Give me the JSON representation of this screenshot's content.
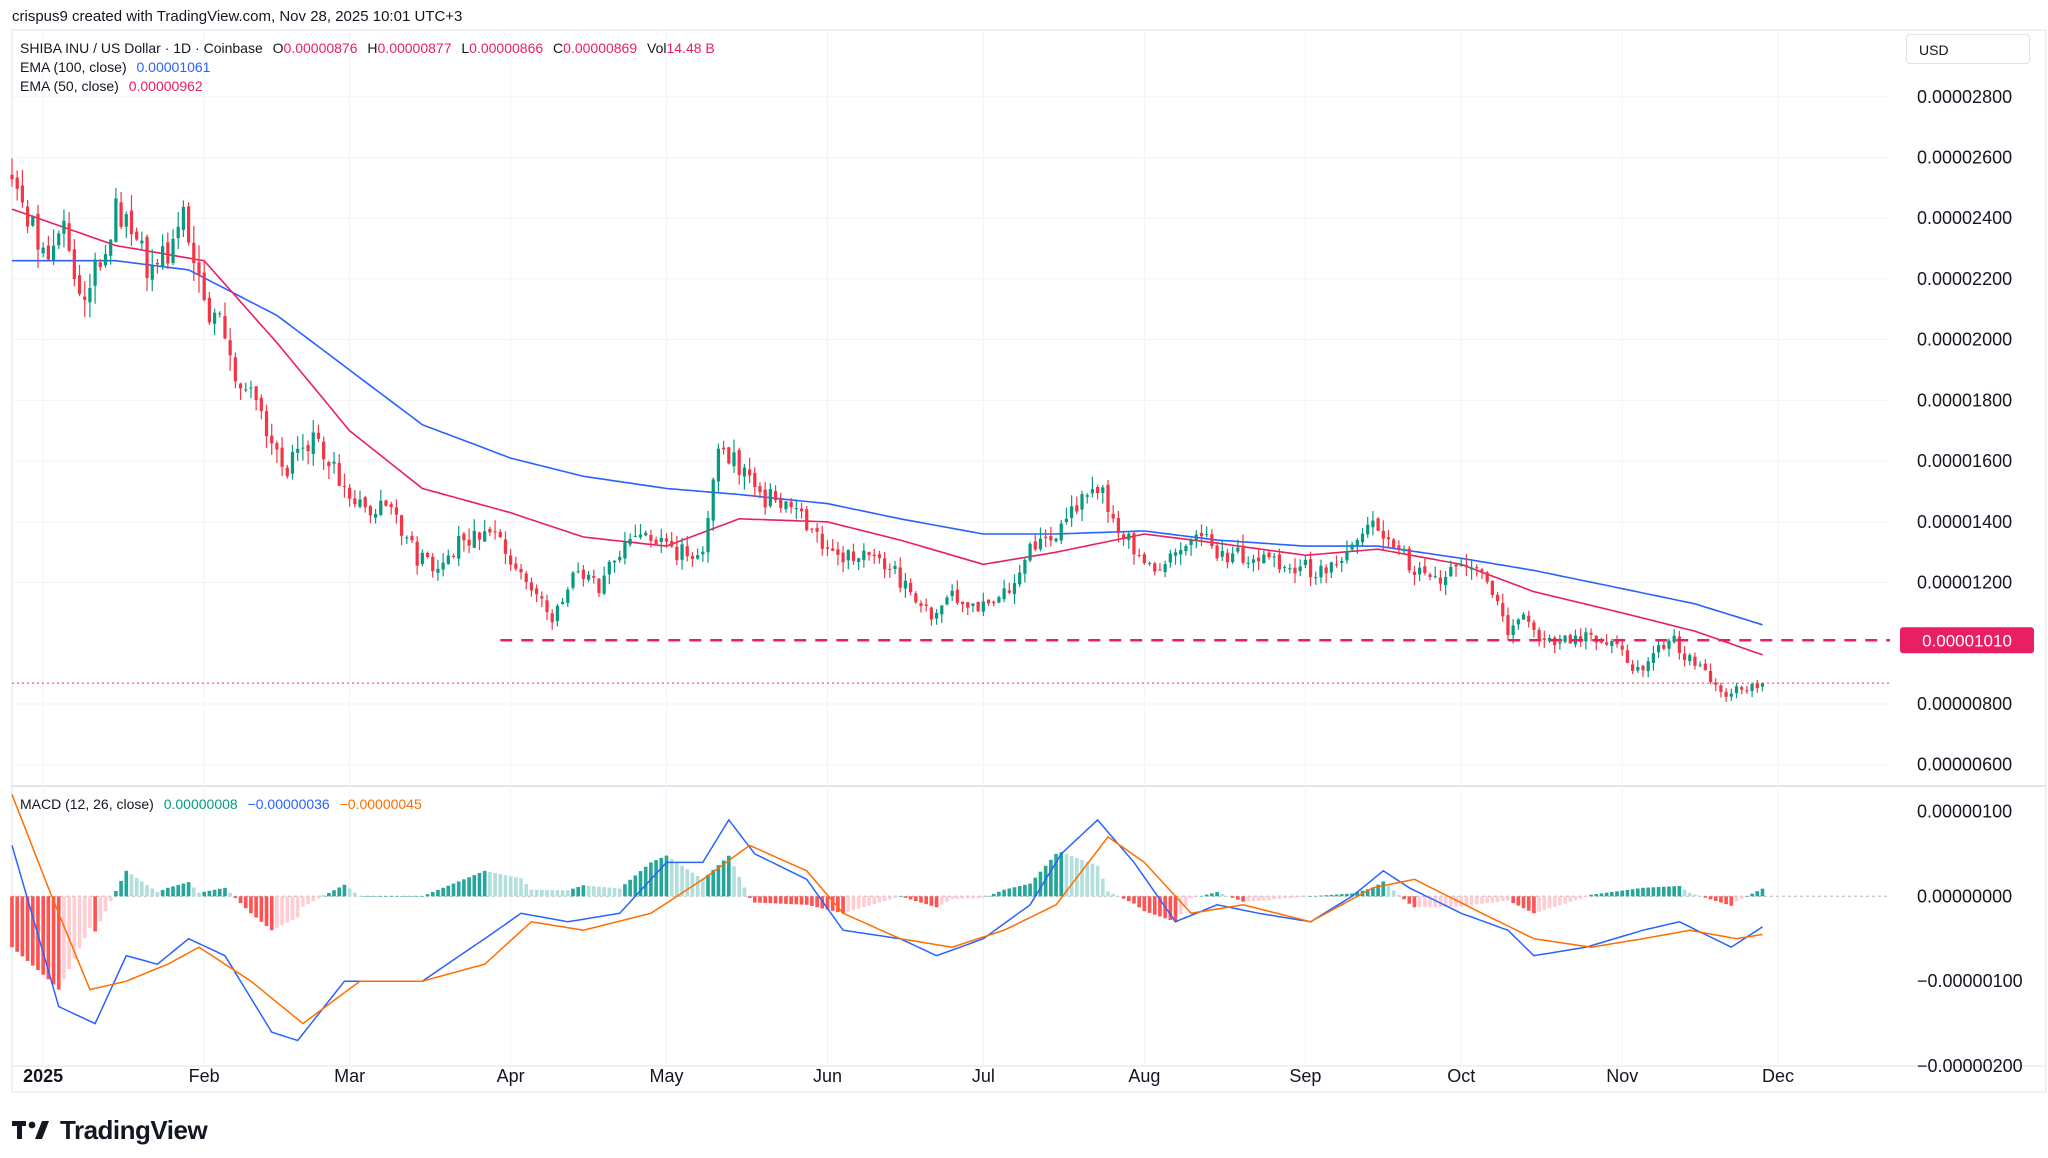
{
  "header": {
    "attribution": "crispus9 created with TradingView.com, Nov 28, 2025 10:01 UTC+3"
  },
  "legend": {
    "symbol": "SHIBA INU / US Dollar · 1D · Coinbase",
    "o_label": "O",
    "o_value": "0.00000876",
    "h_label": "H",
    "h_value": "0.00000877",
    "l_label": "L",
    "l_value": "0.00000866",
    "c_label": "C",
    "c_value": "0.00000869",
    "vol_label": "Vol",
    "vol_value": "14.48 B",
    "ema100_label": "EMA (100, close)",
    "ema100_value": "0.00001061",
    "ema50_label": "EMA (50, close)",
    "ema50_value": "0.00000962",
    "macd_label": "MACD (12, 26, close)",
    "macd_hist": "0.00000008",
    "macd_line": "−0.00000036",
    "macd_signal": "−0.00000045"
  },
  "currency": "USD",
  "footer": {
    "brand": "TradingView"
  },
  "colors": {
    "up": "#089981",
    "down": "#f23645",
    "ema100": "#2962ff",
    "ema50": "#e91e63",
    "macd": "#2962ff",
    "signal": "#ff6d00",
    "hist_up_strong": "#26a69a",
    "hist_up_weak": "#b2dfdb",
    "hist_down_strong": "#ff5252",
    "hist_down_weak": "#ffcdd2",
    "support": "#e91e63",
    "grid": "#f0f3fa",
    "axis_text": "#131722"
  },
  "chart_data": {
    "type": "candlestick",
    "title": "SHIBA INU / US Dollar · 1D · Coinbase",
    "x_tick_labels": [
      "2025",
      "Feb",
      "Mar",
      "Apr",
      "May",
      "Jun",
      "Jul",
      "Aug",
      "Sep",
      "Oct",
      "Nov",
      "Dec"
    ],
    "x_tick_dates": [
      "2025-01-01",
      "2025-02-01",
      "2025-03-01",
      "2025-04-01",
      "2025-05-01",
      "2025-06-01",
      "2025-07-01",
      "2025-08-01",
      "2025-09-01",
      "2025-10-01",
      "2025-11-01",
      "2025-12-01"
    ],
    "x_range": [
      "2024-12-26",
      "2025-12-11"
    ],
    "price_axis": {
      "ylim": [
        5.3e-06,
        3.02e-05
      ],
      "ticks": [
        2.8e-05,
        2.6e-05,
        2.4e-05,
        2.2e-05,
        2e-05,
        1.8e-05,
        1.6e-05,
        1.4e-05,
        1.2e-05,
        8e-06,
        6e-06
      ],
      "tick_labels": [
        "0.00002800",
        "0.00002600",
        "0.00002400",
        "0.00002200",
        "0.00002000",
        "0.00001800",
        "0.00001600",
        "0.00001400",
        "0.00001200",
        "0.00000800",
        "0.00000600"
      ]
    },
    "support_level": {
      "value": 1.01e-05,
      "label": "0.00001010",
      "from": "2025-03-30",
      "to": "2025-12-11"
    },
    "last_price": 8.69e-06,
    "close_anchors": [
      [
        "2024-12-26",
        2.55e-05
      ],
      [
        "2025-01-02",
        2.25e-05
      ],
      [
        "2025-01-05",
        2.35e-05
      ],
      [
        "2025-01-09",
        2.15e-05
      ],
      [
        "2025-01-13",
        2.28e-05
      ],
      [
        "2025-01-15",
        2.43e-05
      ],
      [
        "2025-01-18",
        2.33e-05
      ],
      [
        "2025-01-22",
        2.22e-05
      ],
      [
        "2025-01-26",
        2.3e-05
      ],
      [
        "2025-01-28",
        2.42e-05
      ],
      [
        "2025-02-02",
        2.03e-05
      ],
      [
        "2025-02-04",
        2.07e-05
      ],
      [
        "2025-02-08",
        1.83e-05
      ],
      [
        "2025-02-10",
        1.85e-05
      ],
      [
        "2025-02-14",
        1.67e-05
      ],
      [
        "2025-02-17",
        1.58e-05
      ],
      [
        "2025-02-22",
        1.66e-05
      ],
      [
        "2025-02-26",
        1.57e-05
      ],
      [
        "2025-03-04",
        1.43e-05
      ],
      [
        "2025-03-08",
        1.48e-05
      ],
      [
        "2025-03-14",
        1.28e-05
      ],
      [
        "2025-03-18",
        1.26e-05
      ],
      [
        "2025-03-22",
        1.33e-05
      ],
      [
        "2025-03-28",
        1.39e-05
      ],
      [
        "2025-04-02",
        1.24e-05
      ],
      [
        "2025-04-06",
        1.15e-05
      ],
      [
        "2025-04-09",
        1.08e-05
      ],
      [
        "2025-04-13",
        1.22e-05
      ],
      [
        "2025-04-18",
        1.19e-05
      ],
      [
        "2025-04-23",
        1.33e-05
      ],
      [
        "2025-04-27",
        1.35e-05
      ],
      [
        "2025-05-03",
        1.3e-05
      ],
      [
        "2025-05-08",
        1.29e-05
      ],
      [
        "2025-05-11",
        1.64e-05
      ],
      [
        "2025-05-15",
        1.58e-05
      ],
      [
        "2025-05-20",
        1.48e-05
      ],
      [
        "2025-05-24",
        1.46e-05
      ],
      [
        "2025-05-29",
        1.37e-05
      ],
      [
        "2025-06-03",
        1.28e-05
      ],
      [
        "2025-06-10",
        1.31e-05
      ],
      [
        "2025-06-16",
        1.19e-05
      ],
      [
        "2025-06-21",
        1.08e-05
      ],
      [
        "2025-06-25",
        1.15e-05
      ],
      [
        "2025-06-30",
        1.13e-05
      ],
      [
        "2025-07-05",
        1.16e-05
      ],
      [
        "2025-07-10",
        1.31e-05
      ],
      [
        "2025-07-15",
        1.37e-05
      ],
      [
        "2025-07-19",
        1.45e-05
      ],
      [
        "2025-07-23",
        1.52e-05
      ],
      [
        "2025-07-27",
        1.39e-05
      ],
      [
        "2025-08-02",
        1.24e-05
      ],
      [
        "2025-08-06",
        1.29e-05
      ],
      [
        "2025-08-12",
        1.36e-05
      ],
      [
        "2025-08-16",
        1.29e-05
      ],
      [
        "2025-08-22",
        1.29e-05
      ],
      [
        "2025-08-28",
        1.26e-05
      ],
      [
        "2025-09-04",
        1.24e-05
      ],
      [
        "2025-09-10",
        1.3e-05
      ],
      [
        "2025-09-14",
        1.4e-05
      ],
      [
        "2025-09-18",
        1.34e-05
      ],
      [
        "2025-09-22",
        1.23e-05
      ],
      [
        "2025-09-27",
        1.2e-05
      ],
      [
        "2025-10-02",
        1.27e-05
      ],
      [
        "2025-10-06",
        1.23e-05
      ],
      [
        "2025-10-10",
        1.01e-05
      ],
      [
        "2025-10-13",
        1.09e-05
      ],
      [
        "2025-10-17",
        1.01e-05
      ],
      [
        "2025-10-22",
        1.02e-05
      ],
      [
        "2025-10-28",
        1.01e-05
      ],
      [
        "2025-10-31",
        9.8e-06
      ],
      [
        "2025-11-04",
        9.1e-06
      ],
      [
        "2025-11-08",
        9.8e-06
      ],
      [
        "2025-11-11",
        1.01e-05
      ],
      [
        "2025-11-14",
        9.4e-06
      ],
      [
        "2025-11-18",
        8.8e-06
      ],
      [
        "2025-11-21",
        8.1e-06
      ],
      [
        "2025-11-24",
        8.6e-06
      ],
      [
        "2025-11-28",
        8.69e-06
      ]
    ],
    "ema100_anchors": [
      [
        "2024-12-26",
        2.26e-05
      ],
      [
        "2025-01-15",
        2.26e-05
      ],
      [
        "2025-01-29",
        2.23e-05
      ],
      [
        "2025-02-15",
        2.08e-05
      ],
      [
        "2025-03-01",
        1.9e-05
      ],
      [
        "2025-03-15",
        1.72e-05
      ],
      [
        "2025-04-01",
        1.61e-05
      ],
      [
        "2025-04-15",
        1.55e-05
      ],
      [
        "2025-05-01",
        1.51e-05
      ],
      [
        "2025-05-15",
        1.49e-05
      ],
      [
        "2025-06-01",
        1.46e-05
      ],
      [
        "2025-06-15",
        1.41e-05
      ],
      [
        "2025-07-01",
        1.36e-05
      ],
      [
        "2025-07-15",
        1.36e-05
      ],
      [
        "2025-08-01",
        1.37e-05
      ],
      [
        "2025-08-15",
        1.34e-05
      ],
      [
        "2025-09-01",
        1.32e-05
      ],
      [
        "2025-09-15",
        1.32e-05
      ],
      [
        "2025-10-01",
        1.28e-05
      ],
      [
        "2025-10-15",
        1.24e-05
      ],
      [
        "2025-11-01",
        1.18e-05
      ],
      [
        "2025-11-15",
        1.13e-05
      ],
      [
        "2025-11-28",
        1.061e-05
      ]
    ],
    "ema50_anchors": [
      [
        "2024-12-26",
        2.43e-05
      ],
      [
        "2025-01-15",
        2.31e-05
      ],
      [
        "2025-02-01",
        2.26e-05
      ],
      [
        "2025-02-15",
        1.99e-05
      ],
      [
        "2025-03-01",
        1.7e-05
      ],
      [
        "2025-03-15",
        1.51e-05
      ],
      [
        "2025-04-01",
        1.43e-05
      ],
      [
        "2025-04-15",
        1.35e-05
      ],
      [
        "2025-05-01",
        1.32e-05
      ],
      [
        "2025-05-15",
        1.41e-05
      ],
      [
        "2025-06-01",
        1.4e-05
      ],
      [
        "2025-06-15",
        1.34e-05
      ],
      [
        "2025-07-01",
        1.26e-05
      ],
      [
        "2025-07-15",
        1.3e-05
      ],
      [
        "2025-08-01",
        1.36e-05
      ],
      [
        "2025-08-15",
        1.33e-05
      ],
      [
        "2025-09-01",
        1.29e-05
      ],
      [
        "2025-09-15",
        1.31e-05
      ],
      [
        "2025-10-01",
        1.26e-05
      ],
      [
        "2025-10-15",
        1.17e-05
      ],
      [
        "2025-11-01",
        1.1e-05
      ],
      [
        "2025-11-15",
        1.04e-05
      ],
      [
        "2025-11-28",
        9.62e-06
      ]
    ],
    "macd_axis": {
      "ylim": [
        -2e-06,
        1.3e-06
      ],
      "ticks": [
        1e-06,
        0.0,
        -1e-06,
        -2e-06
      ],
      "tick_labels": [
        "0.00000100",
        "0.00000000",
        "−0.00000100",
        "−0.00000200"
      ]
    },
    "macd_anchors": [
      [
        "2024-12-26",
        6e-07
      ],
      [
        "2025-01-04",
        -1.3e-06
      ],
      [
        "2025-01-11",
        -1.5e-06
      ],
      [
        "2025-01-17",
        -7e-07
      ],
      [
        "2025-01-23",
        -8e-07
      ],
      [
        "2025-01-29",
        -5e-07
      ],
      [
        "2025-02-05",
        -7e-07
      ],
      [
        "2025-02-14",
        -1.6e-06
      ],
      [
        "2025-02-19",
        -1.7e-06
      ],
      [
        "2025-02-28",
        -1e-06
      ],
      [
        "2025-03-15",
        -1e-06
      ],
      [
        "2025-03-27",
        -5e-07
      ],
      [
        "2025-04-03",
        -2e-07
      ],
      [
        "2025-04-12",
        -3e-07
      ],
      [
        "2025-04-22",
        -2e-07
      ],
      [
        "2025-05-01",
        4e-07
      ],
      [
        "2025-05-08",
        4e-07
      ],
      [
        "2025-05-13",
        9e-07
      ],
      [
        "2025-05-18",
        5e-07
      ],
      [
        "2025-05-28",
        2e-07
      ],
      [
        "2025-06-04",
        -4e-07
      ],
      [
        "2025-06-15",
        -5e-07
      ],
      [
        "2025-06-22",
        -7e-07
      ],
      [
        "2025-07-01",
        -5e-07
      ],
      [
        "2025-07-10",
        -1e-07
      ],
      [
        "2025-07-16",
        5e-07
      ],
      [
        "2025-07-23",
        9e-07
      ],
      [
        "2025-07-30",
        4e-07
      ],
      [
        "2025-08-07",
        -3e-07
      ],
      [
        "2025-08-15",
        -1e-07
      ],
      [
        "2025-08-23",
        -2e-07
      ],
      [
        "2025-09-02",
        -3e-07
      ],
      [
        "2025-09-10",
        0.0
      ],
      [
        "2025-09-16",
        3e-07
      ],
      [
        "2025-09-21",
        1e-07
      ],
      [
        "2025-10-01",
        -2e-07
      ],
      [
        "2025-10-10",
        -4e-07
      ],
      [
        "2025-10-15",
        -7e-07
      ],
      [
        "2025-10-25",
        -6e-07
      ],
      [
        "2025-11-05",
        -4e-07
      ],
      [
        "2025-11-12",
        -3e-07
      ],
      [
        "2025-11-22",
        -6e-07
      ],
      [
        "2025-11-28",
        -3.6e-07
      ]
    ],
    "signal_anchors": [
      [
        "2024-12-26",
        1.2e-06
      ],
      [
        "2025-01-02",
        1e-07
      ],
      [
        "2025-01-10",
        -1.1e-06
      ],
      [
        "2025-01-17",
        -1e-06
      ],
      [
        "2025-01-25",
        -8e-07
      ],
      [
        "2025-01-31",
        -6e-07
      ],
      [
        "2025-02-10",
        -1e-06
      ],
      [
        "2025-02-20",
        -1.5e-06
      ],
      [
        "2025-03-03",
        -1e-06
      ],
      [
        "2025-03-15",
        -1e-06
      ],
      [
        "2025-03-27",
        -8e-07
      ],
      [
        "2025-04-05",
        -3e-07
      ],
      [
        "2025-04-15",
        -4e-07
      ],
      [
        "2025-04-28",
        -2e-07
      ],
      [
        "2025-05-08",
        2e-07
      ],
      [
        "2025-05-17",
        6e-07
      ],
      [
        "2025-05-28",
        3e-07
      ],
      [
        "2025-06-04",
        -2e-07
      ],
      [
        "2025-06-15",
        -5e-07
      ],
      [
        "2025-06-25",
        -6e-07
      ],
      [
        "2025-07-05",
        -4e-07
      ],
      [
        "2025-07-15",
        -1e-07
      ],
      [
        "2025-07-25",
        7e-07
      ],
      [
        "2025-08-01",
        4e-07
      ],
      [
        "2025-08-10",
        -2e-07
      ],
      [
        "2025-08-20",
        -1e-07
      ],
      [
        "2025-09-02",
        -3e-07
      ],
      [
        "2025-09-14",
        1e-07
      ],
      [
        "2025-09-22",
        2e-07
      ],
      [
        "2025-10-05",
        -2e-07
      ],
      [
        "2025-10-15",
        -5e-07
      ],
      [
        "2025-10-26",
        -6e-07
      ],
      [
        "2025-11-05",
        -5e-07
      ],
      [
        "2025-11-14",
        -4e-07
      ],
      [
        "2025-11-23",
        -5e-07
      ],
      [
        "2025-11-28",
        -4.5e-07
      ]
    ]
  }
}
